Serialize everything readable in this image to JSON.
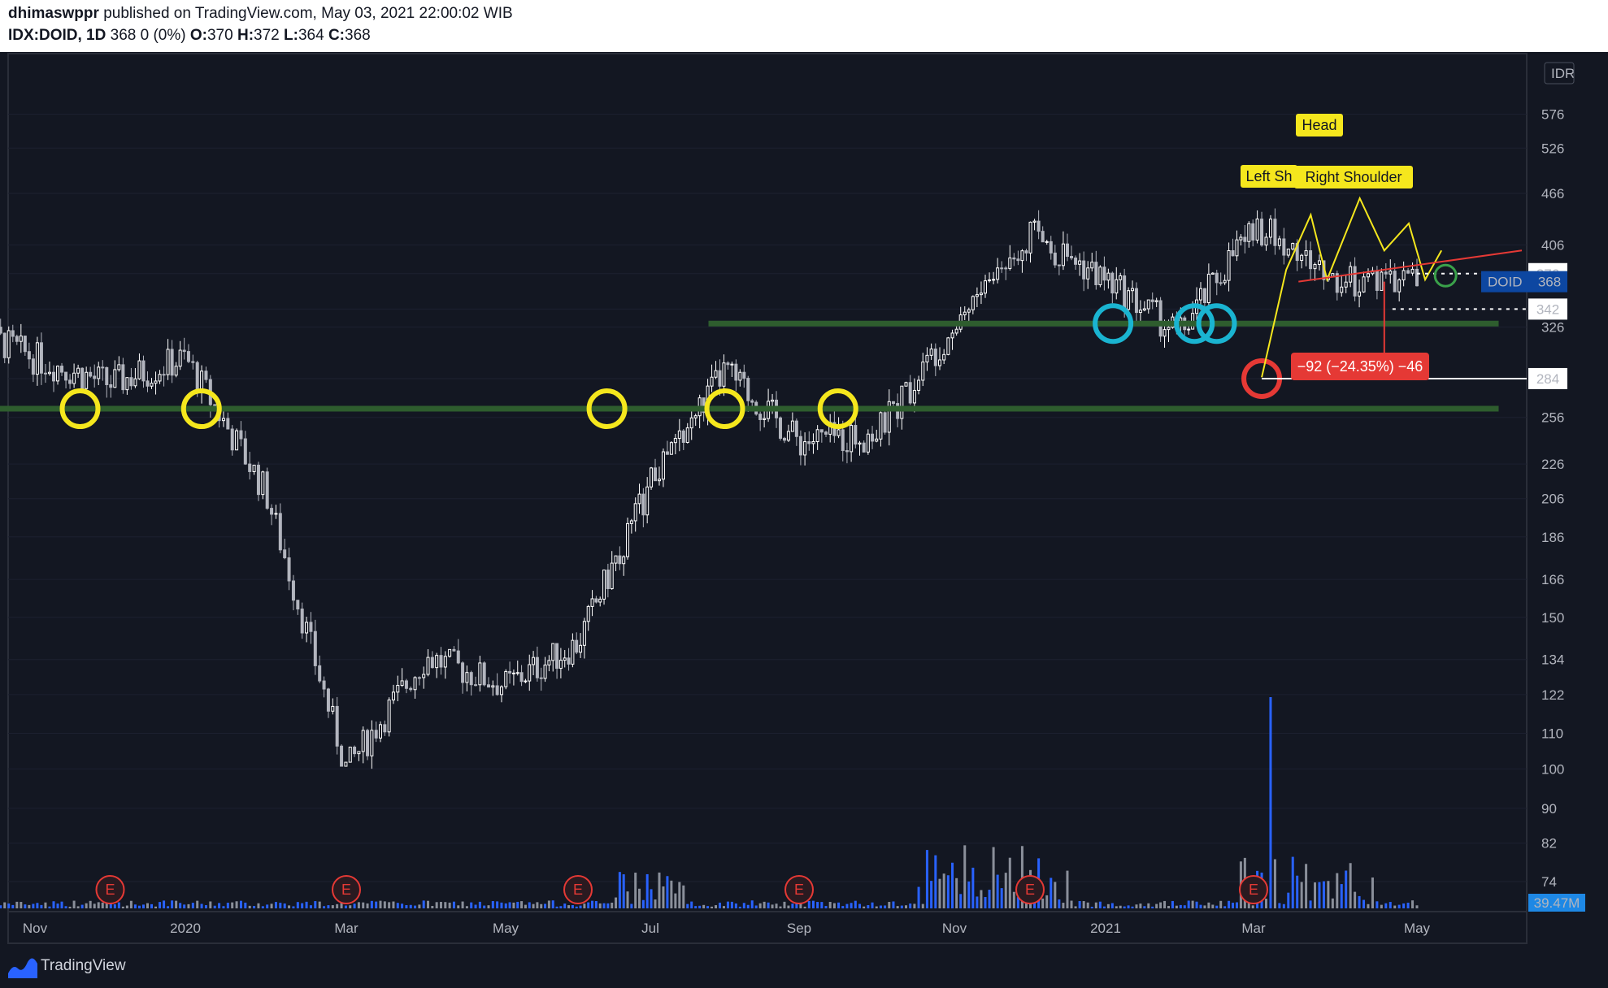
{
  "header": {
    "author": "dhimaswppr",
    "published": "published on TradingView.com, May 03, 2021 22:00:02 WIB",
    "symbol": "IDX:DOID, 1D",
    "change": "368 0 (0%)",
    "o_label": "O:",
    "o_value": "370",
    "h_label": "H:",
    "h_value": "372",
    "l_label": "L:",
    "l_value": "364",
    "c_label": "C:",
    "c_value": "368"
  },
  "footer": {
    "brand": "TradingView"
  },
  "colors": {
    "background": "#131722",
    "support_line": "#2e5d2e",
    "marker_yellow": "#f5e71d",
    "marker_cyan": "#1ab4d1",
    "marker_red": "#e53935",
    "pattern_label_bg": "#f5e71d",
    "neckline": "#e53935",
    "volume": "#2962ff"
  },
  "chart_data": {
    "type": "candlestick",
    "currency": "IDR",
    "y_scale": "log",
    "ylim": [
      70,
      576
    ],
    "y_ticks": [
      74,
      82,
      90,
      100,
      110,
      122,
      134,
      150,
      166,
      186,
      206,
      226,
      256,
      284,
      326,
      342,
      376,
      406,
      466,
      526,
      576
    ],
    "x_labels": [
      "Nov",
      "2020",
      "Mar",
      "May",
      "Jul",
      "Sep",
      "Nov",
      "2021",
      "Mar",
      "May"
    ],
    "price_tags": [
      {
        "label": "376",
        "value": 376
      },
      {
        "label": "342",
        "value": 342
      },
      {
        "label": "284",
        "value": 284
      }
    ],
    "symbol_tag": {
      "name": "DOID",
      "value": 368
    },
    "volume_tag": "39.47M",
    "earnings_marker": "E",
    "earnings_months": [
      "2019-12",
      "2020-03",
      "2020-06",
      "2020-09",
      "2020-12",
      "2021-03"
    ],
    "pattern_labels": {
      "left": "Left Sh",
      "head": "Head",
      "right": "Right Shoulder"
    },
    "measure_label": "−92 (−24.35%) −46",
    "support_levels": [
      {
        "value": 262,
        "from": "2019-10",
        "to": "2021-06"
      },
      {
        "value": 329,
        "from": "2020-08",
        "to": "2021-06"
      }
    ],
    "close_series": [
      {
        "month": "2019-10",
        "close": 330
      },
      {
        "month": "2019-11",
        "close": 300
      },
      {
        "month": "2019-12",
        "close": 280
      },
      {
        "month": "2020-01",
        "close": 300
      },
      {
        "month": "2020-02",
        "close": 210
      },
      {
        "month": "2020-03",
        "close": 100
      },
      {
        "month": "2020-04",
        "close": 135
      },
      {
        "month": "2020-05",
        "close": 125
      },
      {
        "month": "2020-06",
        "close": 140
      },
      {
        "month": "2020-07",
        "close": 215
      },
      {
        "month": "2020-08",
        "close": 290
      },
      {
        "month": "2020-09",
        "close": 240
      },
      {
        "month": "2020-10",
        "close": 245
      },
      {
        "month": "2020-11",
        "close": 330
      },
      {
        "month": "2020-12",
        "close": 420
      },
      {
        "month": "2021-01",
        "close": 370
      },
      {
        "month": "2021-02",
        "close": 320
      },
      {
        "month": "2021-03",
        "close": 430
      },
      {
        "month": "2021-04",
        "close": 370
      },
      {
        "month": "2021-05",
        "close": 368
      }
    ]
  }
}
